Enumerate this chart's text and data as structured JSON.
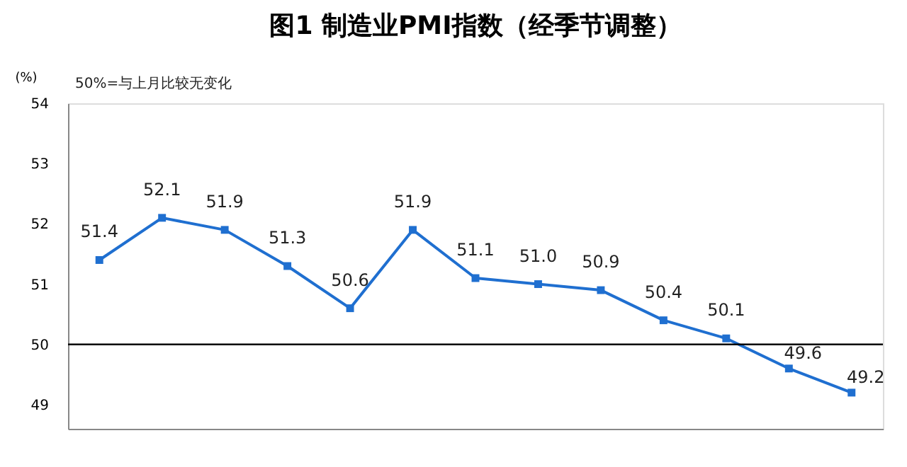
{
  "chart_data": {
    "type": "line",
    "title": "图1 制造业PMI指数（经季节调整）",
    "ylabel": "(%)",
    "annotations": [
      "50%=与上月比较无变化"
    ],
    "categories": [
      null,
      null,
      null,
      null,
      null,
      null,
      null,
      null,
      null,
      null,
      null,
      null,
      null
    ],
    "series": [
      {
        "color": "#1f6fd0",
        "values": [
          51.4,
          52.1,
          51.9,
          51.3,
          50.6,
          51.9,
          51.1,
          51.0,
          50.9,
          50.4,
          50.1,
          49.6,
          49.2
        ],
        "value_labels": [
          "51.4",
          "52.1",
          "51.9",
          "51.3",
          "50.6",
          "51.9",
          "51.1",
          "51.0",
          "50.9",
          "50.4",
          "50.1",
          "49.6",
          "49.2"
        ]
      }
    ],
    "ylim": [
      48.6,
      54
    ],
    "yticks": [
      49,
      50,
      51,
      52,
      53,
      54
    ],
    "ref_lines": [
      {
        "axis": "y",
        "value": 50,
        "color": "#000000"
      }
    ],
    "marker": "square",
    "line_style": "solid",
    "grid": false,
    "tick_labels": "y"
  }
}
